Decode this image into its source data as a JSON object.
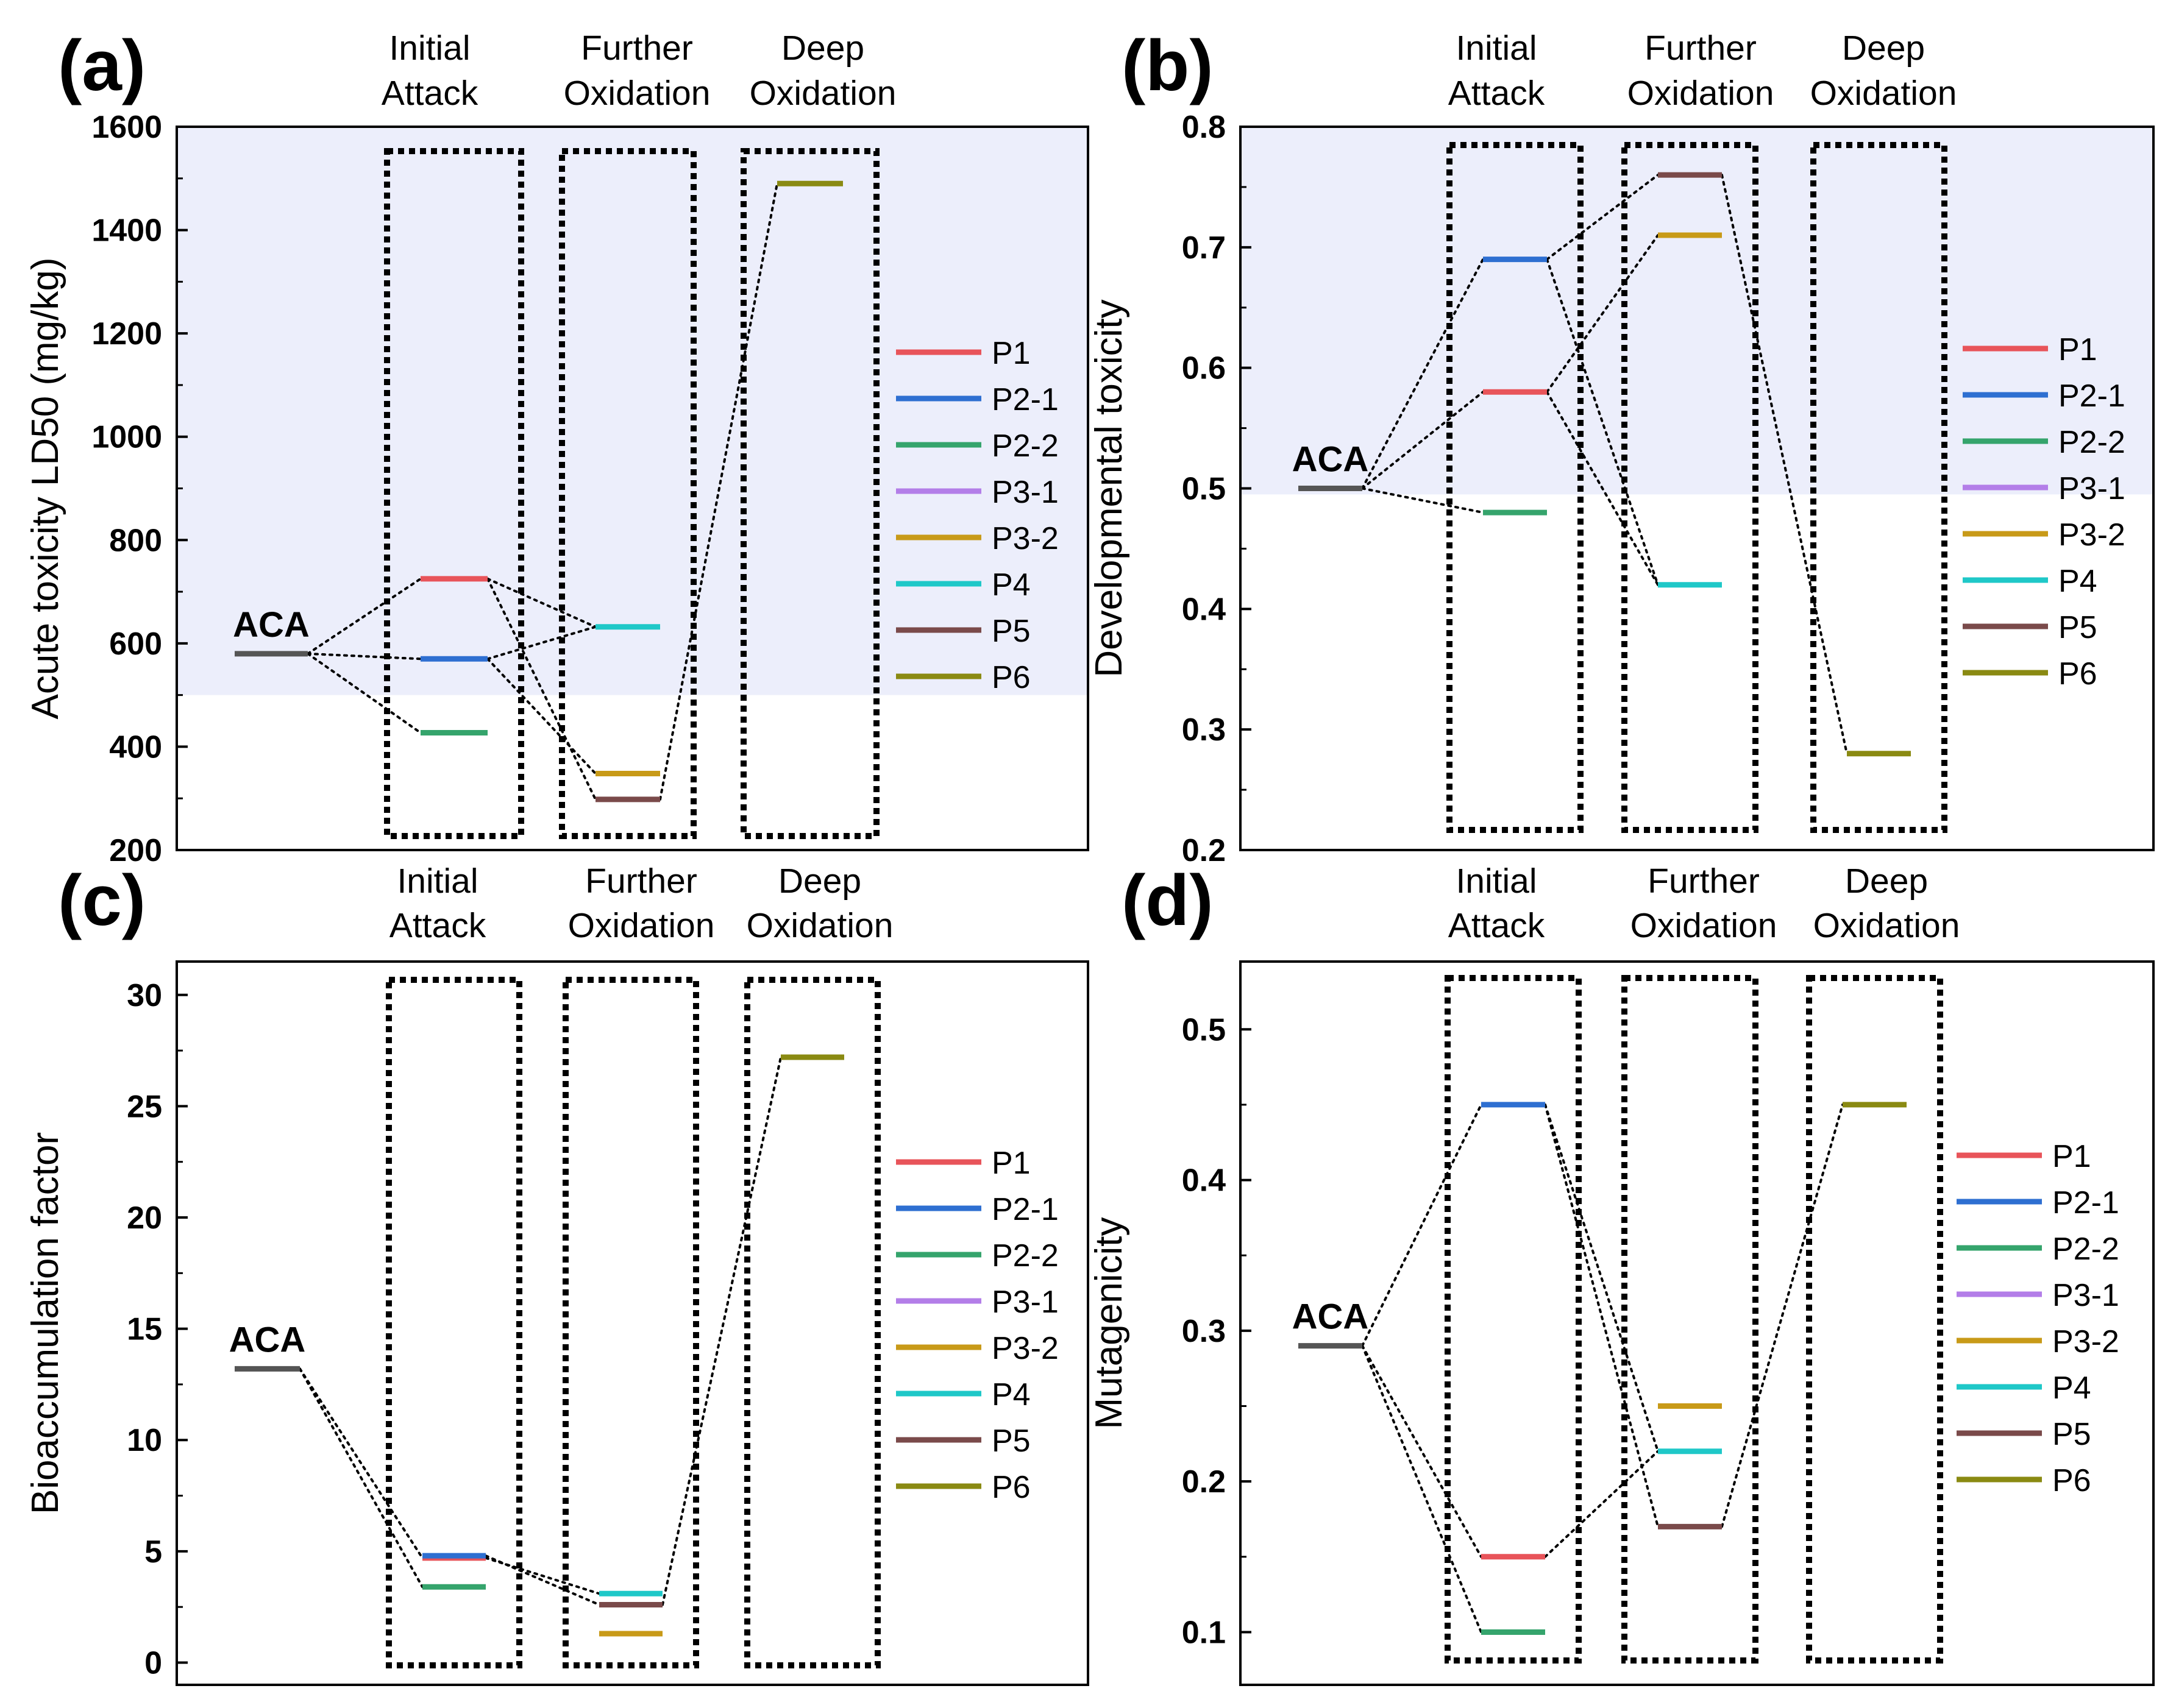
{
  "colors": {
    "P1": "#e8545a",
    "P2-1": "#2e6fd1",
    "P2-2": "#35a46c",
    "P3-1": "#b37ee8",
    "P3-2": "#c89a18",
    "P4": "#1fc8c8",
    "P5": "#7a4a4a",
    "P6": "#8a8a12",
    "ACA": "#555555",
    "shade": "#eceefb"
  },
  "chart_data": [
    {
      "type": "energy-level diagram",
      "panel": "(a)",
      "ylabel": "Acute toxicity LD50 (mg/kg)",
      "ylim": [
        200,
        1600
      ],
      "ticks": [
        200,
        400,
        600,
        800,
        1000,
        1200,
        1400,
        1600
      ],
      "shade_above": 500,
      "stages": [
        {
          "line1": "Initial",
          "line2": "Attack"
        },
        {
          "line1": "Further",
          "line2": "Oxidation"
        },
        {
          "line1": "Deep",
          "line2": "Oxidation"
        }
      ],
      "aca": {
        "label": "ACA",
        "value": 580
      },
      "levels": [
        {
          "name": "P1",
          "stage": 0,
          "value": 725
        },
        {
          "name": "P2-1",
          "stage": 0,
          "value": 570
        },
        {
          "name": "P2-2",
          "stage": 0,
          "value": 427
        },
        {
          "name": "P4",
          "stage": 1,
          "value": 632
        },
        {
          "name": "P3-2",
          "stage": 1,
          "value": 348
        },
        {
          "name": "P5",
          "stage": 1,
          "value": 298
        },
        {
          "name": "P6",
          "stage": 2,
          "value": 1490
        }
      ],
      "links": [
        [
          "ACA",
          "P1"
        ],
        [
          "ACA",
          "P2-1"
        ],
        [
          "ACA",
          "P2-2"
        ],
        [
          "P1",
          "P4"
        ],
        [
          "P1",
          "P5"
        ],
        [
          "P2-1",
          "P4"
        ],
        [
          "P2-1",
          "P3-2"
        ],
        [
          "P5",
          "P6"
        ]
      ],
      "legend": [
        "P1",
        "P2-1",
        "P2-2",
        "P3-1",
        "P3-2",
        "P4",
        "P5",
        "P6"
      ]
    },
    {
      "type": "energy-level diagram",
      "panel": "(b)",
      "ylabel": "Developmental toxicity",
      "ylim": [
        0.2,
        0.8
      ],
      "ticks": [
        "0.2",
        "0.3",
        "0.4",
        "0.5",
        "0.6",
        "0.7",
        "0.8"
      ],
      "shade_above": 0.495,
      "stages": [
        {
          "line1": "Initial",
          "line2": "Attack"
        },
        {
          "line1": "Further",
          "line2": "Oxidation"
        },
        {
          "line1": "Deep",
          "line2": "Oxidation"
        }
      ],
      "aca": {
        "label": "ACA",
        "value": 0.5
      },
      "levels": [
        {
          "name": "P2-1",
          "stage": 0,
          "value": 0.69
        },
        {
          "name": "P1",
          "stage": 0,
          "value": 0.58
        },
        {
          "name": "P2-2",
          "stage": 0,
          "value": 0.48
        },
        {
          "name": "P5",
          "stage": 1,
          "value": 0.76
        },
        {
          "name": "P3-2",
          "stage": 1,
          "value": 0.71
        },
        {
          "name": "P4",
          "stage": 1,
          "value": 0.42
        },
        {
          "name": "P6",
          "stage": 2,
          "value": 0.28
        }
      ],
      "links": [
        [
          "ACA",
          "P2-1"
        ],
        [
          "ACA",
          "P1"
        ],
        [
          "ACA",
          "P2-2"
        ],
        [
          "P2-1",
          "P5"
        ],
        [
          "P2-1",
          "P4"
        ],
        [
          "P1",
          "P3-2"
        ],
        [
          "P1",
          "P4"
        ],
        [
          "P5",
          "P6"
        ]
      ],
      "legend": [
        "P1",
        "P2-1",
        "P2-2",
        "P3-1",
        "P3-2",
        "P4",
        "P5",
        "P6"
      ]
    },
    {
      "type": "energy-level diagram",
      "panel": "(c)",
      "ylabel": "Bioaccumulation factor",
      "ylim": [
        -1,
        31.5
      ],
      "ticks": [
        0,
        5,
        10,
        15,
        20,
        25,
        30
      ],
      "shade_above": null,
      "stages": [
        {
          "line1": "Initial",
          "line2": "Attack"
        },
        {
          "line1": "Further",
          "line2": "Oxidation"
        },
        {
          "line1": "Deep",
          "line2": "Oxidation"
        }
      ],
      "aca": {
        "label": "ACA",
        "value": 13.2
      },
      "levels": [
        {
          "name": "P1",
          "stage": 0,
          "value": 4.7
        },
        {
          "name": "P2-1",
          "stage": 0,
          "value": 4.8
        },
        {
          "name": "P2-2",
          "stage": 0,
          "value": 3.4
        },
        {
          "name": "P4",
          "stage": 1,
          "value": 3.1
        },
        {
          "name": "P5",
          "stage": 1,
          "value": 2.6
        },
        {
          "name": "P3-2",
          "stage": 1,
          "value": 1.3
        },
        {
          "name": "P6",
          "stage": 2,
          "value": 27.2
        }
      ],
      "links": [
        [
          "ACA",
          "P1"
        ],
        [
          "ACA",
          "P2-2"
        ],
        [
          "P1",
          "P4"
        ],
        [
          "P2-1",
          "P5"
        ],
        [
          "P5",
          "P6"
        ]
      ],
      "legend": [
        "P1",
        "P2-1",
        "P2-2",
        "P3-1",
        "P3-2",
        "P4",
        "P5",
        "P6"
      ]
    },
    {
      "type": "energy-level diagram",
      "panel": "(d)",
      "ylabel": "Mutagenicity",
      "ylim": [
        0.065,
        0.545
      ],
      "ticks": [
        "0.1",
        "0.2",
        "0.3",
        "0.4",
        "0.5"
      ],
      "shade_above": null,
      "stages": [
        {
          "line1": "Initial",
          "line2": "Attack"
        },
        {
          "line1": "Further",
          "line2": "Oxidation"
        },
        {
          "line1": "Deep",
          "line2": "Oxidation"
        }
      ],
      "aca": {
        "label": "ACA",
        "value": 0.29
      },
      "levels": [
        {
          "name": "P2-1",
          "stage": 0,
          "value": 0.45
        },
        {
          "name": "P1",
          "stage": 0,
          "value": 0.15
        },
        {
          "name": "P2-2",
          "stage": 0,
          "value": 0.1
        },
        {
          "name": "P3-2",
          "stage": 1,
          "value": 0.25
        },
        {
          "name": "P4",
          "stage": 1,
          "value": 0.22
        },
        {
          "name": "P5",
          "stage": 1,
          "value": 0.17
        },
        {
          "name": "P6",
          "stage": 2,
          "value": 0.45
        }
      ],
      "links": [
        [
          "ACA",
          "P2-1"
        ],
        [
          "ACA",
          "P1"
        ],
        [
          "ACA",
          "P2-2"
        ],
        [
          "P2-1",
          "P4"
        ],
        [
          "P2-1",
          "P5"
        ],
        [
          "P1",
          "P4"
        ],
        [
          "P5",
          "P6"
        ]
      ],
      "legend": [
        "P1",
        "P2-1",
        "P2-2",
        "P3-1",
        "P3-2",
        "P4",
        "P5",
        "P6"
      ]
    }
  ]
}
